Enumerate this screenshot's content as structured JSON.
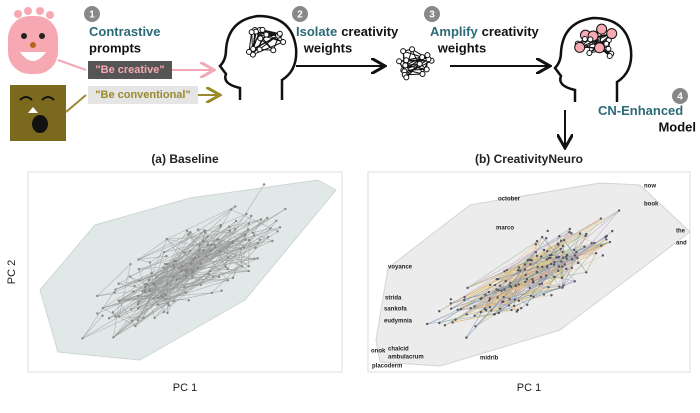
{
  "steps": [
    {
      "number": "1",
      "highlight": "Contrastive",
      "line2": "prompts"
    },
    {
      "number": "2",
      "highlight": "Isolate",
      "rest": "creativity",
      "line2": "weights"
    },
    {
      "number": "3",
      "highlight": "Amplify",
      "rest": "creativity",
      "line2": "weights"
    },
    {
      "number": "4",
      "highlight": "CN-Enhanced",
      "line2": "Model"
    }
  ],
  "prompts": [
    "\"Be creative\"",
    "\"Be conventional\""
  ],
  "panels": [
    {
      "title": "(a) Baseline",
      "x_label": "PC 1",
      "y_label": "PC 2"
    },
    {
      "title": "(b) CreativityNeuro",
      "x_label": "PC 1",
      "words": [
        "october",
        "now",
        "book",
        "marco",
        "the",
        "and",
        "voyance",
        "strida",
        "sankofa",
        "eudymnia",
        "onok",
        "chalcid",
        "ambulacrum",
        "placoderm",
        "midrib"
      ]
    }
  ]
}
